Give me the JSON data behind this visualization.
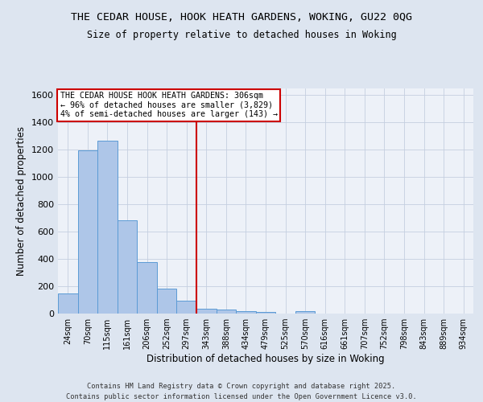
{
  "title_line1": "THE CEDAR HOUSE, HOOK HEATH GARDENS, WOKING, GU22 0QG",
  "title_line2": "Size of property relative to detached houses in Woking",
  "xlabel": "Distribution of detached houses by size in Woking",
  "ylabel": "Number of detached properties",
  "categories": [
    "24sqm",
    "70sqm",
    "115sqm",
    "161sqm",
    "206sqm",
    "252sqm",
    "297sqm",
    "343sqm",
    "388sqm",
    "434sqm",
    "479sqm",
    "525sqm",
    "570sqm",
    "616sqm",
    "661sqm",
    "707sqm",
    "752sqm",
    "798sqm",
    "843sqm",
    "889sqm",
    "934sqm"
  ],
  "values": [
    150,
    1195,
    1265,
    685,
    375,
    180,
    95,
    38,
    32,
    20,
    12,
    0,
    18,
    0,
    0,
    0,
    0,
    0,
    0,
    0,
    0
  ],
  "bar_color": "#aec6e8",
  "bar_edge_color": "#5b9bd5",
  "red_line_index": 6,
  "annotation_text": "THE CEDAR HOUSE HOOK HEATH GARDENS: 306sqm\n← 96% of detached houses are smaller (3,829)\n4% of semi-detached houses are larger (143) →",
  "ylim": [
    0,
    1650
  ],
  "yticks": [
    0,
    200,
    400,
    600,
    800,
    1000,
    1200,
    1400,
    1600
  ],
  "footer_line1": "Contains HM Land Registry data © Crown copyright and database right 2025.",
  "footer_line2": "Contains public sector information licensed under the Open Government Licence v3.0.",
  "bg_color": "#dde5f0",
  "plot_bg_color": "#edf1f8",
  "annotation_box_edge": "#cc0000",
  "grid_color": "#c5cfe0"
}
